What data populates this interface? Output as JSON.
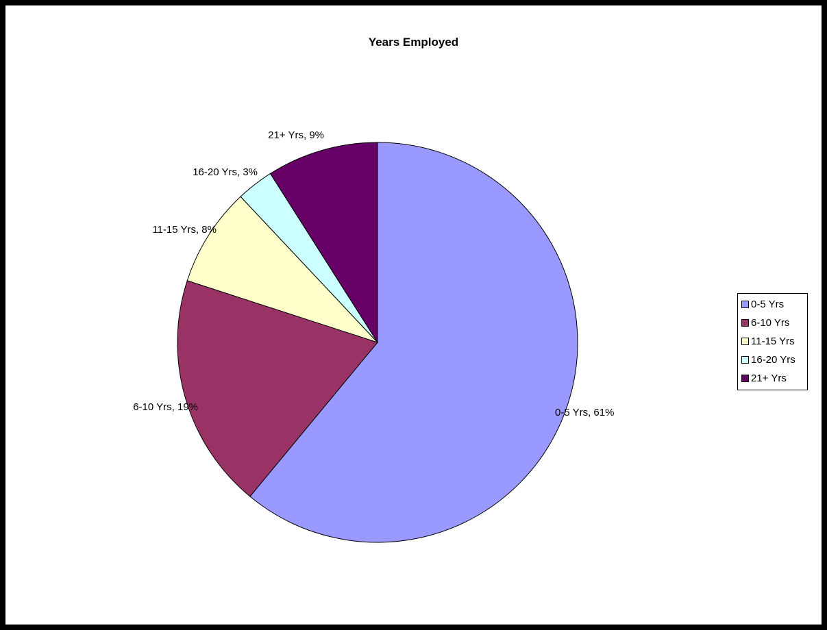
{
  "chart_data": {
    "type": "pie",
    "title": "Years Employed",
    "categories": [
      "0-5 Yrs",
      "6-10 Yrs",
      "11-15 Yrs",
      "16-20 Yrs",
      "21+ Yrs"
    ],
    "values": [
      61,
      19,
      8,
      3,
      9
    ],
    "data_labels": [
      "0-5 Yrs, 61%",
      "6-10 Yrs, 19%",
      "11-15 Yrs, 8%",
      "16-20 Yrs, 3%",
      "21+ Yrs, 9%"
    ],
    "colors": [
      "#9999ff",
      "#993366",
      "#ffffcc",
      "#ccffff",
      "#660066"
    ],
    "start_angle_deg": 0,
    "direction": "clockwise",
    "legend": {
      "placement": "right",
      "entries": [
        "0-5 Yrs",
        "6-10 Yrs",
        "11-15 Yrs",
        "16-20 Yrs",
        "21+ Yrs"
      ]
    }
  }
}
